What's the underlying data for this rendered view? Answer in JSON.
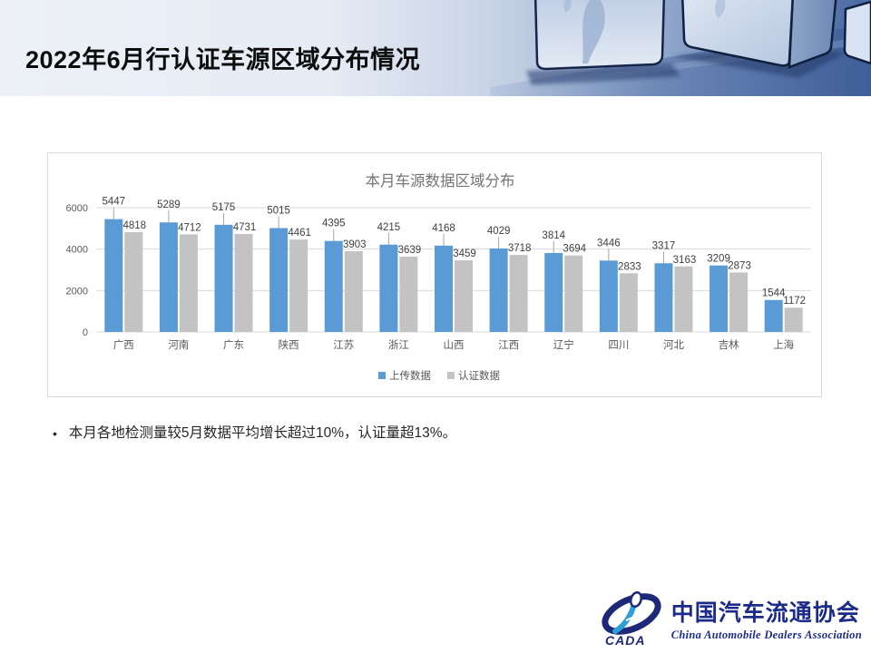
{
  "slide": {
    "title": "2022年6月行认证车源区域分布情况",
    "bullet_marker": "•",
    "bullet": "本月各地检测量较5月数据平均增长超过10%，认证量超13%。"
  },
  "chart_data": {
    "type": "bar",
    "title": "本月车源数据区域分布",
    "categories": [
      "广西",
      "河南",
      "广东",
      "陕西",
      "江苏",
      "浙江",
      "山西",
      "江西",
      "辽宁",
      "四川",
      "河北",
      "吉林",
      "上海"
    ],
    "series": [
      {
        "name": "上传数据",
        "color": "#5B9BD5",
        "values": [
          5447,
          5289,
          5175,
          5015,
          4395,
          4215,
          4168,
          4029,
          3814,
          3446,
          3317,
          3209,
          1544
        ]
      },
      {
        "name": "认证数据",
        "color": "#C3C3C3",
        "values": [
          4818,
          4712,
          4731,
          4461,
          3903,
          3639,
          3459,
          3718,
          3694,
          2833,
          3163,
          2873,
          1172
        ]
      }
    ],
    "xlabel": "",
    "ylabel": "",
    "ylim": [
      0,
      6000
    ],
    "yticks": [
      0,
      2000,
      4000,
      6000
    ],
    "grid": true,
    "legend_position": "bottom",
    "data_labels": true,
    "title_color": "#757575",
    "axis_color": "#595959",
    "gridline_color": "#D9D9D9",
    "label_color": "#404040",
    "leader_line_color": "#A6A6A6"
  },
  "footer_logo": {
    "acronym": "CADA",
    "name_zh": "中国汽车流通协会",
    "name_en": "China Automobile Dealers Association"
  }
}
